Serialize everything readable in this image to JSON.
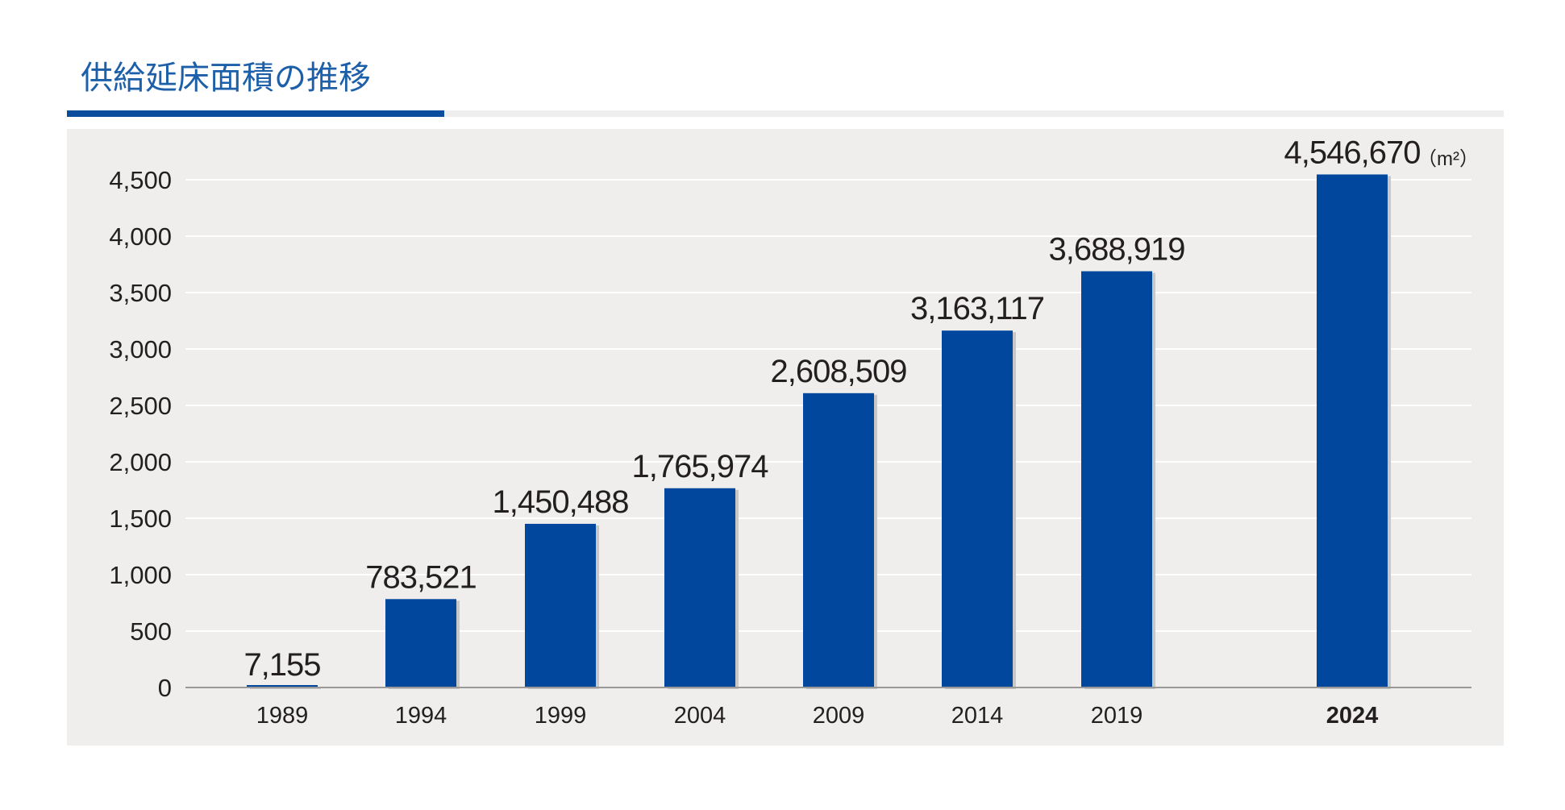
{
  "title": "供給延床面積の推移",
  "unit": "（m²）",
  "colors": {
    "bar": "#00479d",
    "title": "#1d5fa8",
    "accent_line": "#0a4d9c",
    "plot_bg": "#efeeed",
    "grid": "#ffffff",
    "axis": "#999999",
    "text": "#231f20"
  },
  "chart_data": {
    "type": "bar",
    "title": "供給延床面積の推移",
    "unit": "（m²）",
    "categories": [
      "1989",
      "1994",
      "1999",
      "2004",
      "2009",
      "2014",
      "2019",
      "2024"
    ],
    "values": [
      7155,
      783521,
      1450488,
      1765974,
      2608509,
      3163117,
      3688919,
      4546670
    ],
    "value_labels": [
      "7,155",
      "783,521",
      "1,450,488",
      "1,765,974",
      "2,608,509",
      "3,163,117",
      "3,688,919",
      "4,546,670"
    ],
    "y_ticks": [
      0,
      500,
      1000,
      1500,
      2000,
      2500,
      3000,
      3500,
      4000,
      4500
    ],
    "y_tick_labels": [
      "0",
      "500",
      "1,000",
      "1,500",
      "2,000",
      "2,500",
      "3,000",
      "3,500",
      "4,000",
      "4,500"
    ],
    "ylim": [
      0,
      4500
    ],
    "grid": true,
    "highlight_category": "2024"
  }
}
